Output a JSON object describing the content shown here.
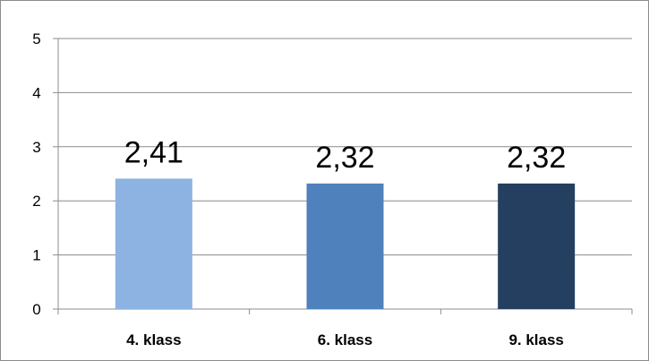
{
  "chart_data": {
    "type": "bar",
    "categories": [
      "4. klass",
      "6. klass",
      "9. klass"
    ],
    "values": [
      2.41,
      2.32,
      2.32
    ],
    "data_labels": [
      "2,41",
      "2,32",
      "2,32"
    ],
    "colors": [
      "#8db3e2",
      "#4f81bd",
      "#243f60"
    ],
    "ylim": [
      0,
      5
    ],
    "yticks": [
      0,
      1,
      2,
      3,
      4,
      5
    ],
    "ytick_labels": [
      "0",
      "1",
      "2",
      "3",
      "4",
      "5"
    ],
    "title": "",
    "xlabel": "",
    "ylabel": "",
    "grid": true,
    "legend": "none"
  }
}
